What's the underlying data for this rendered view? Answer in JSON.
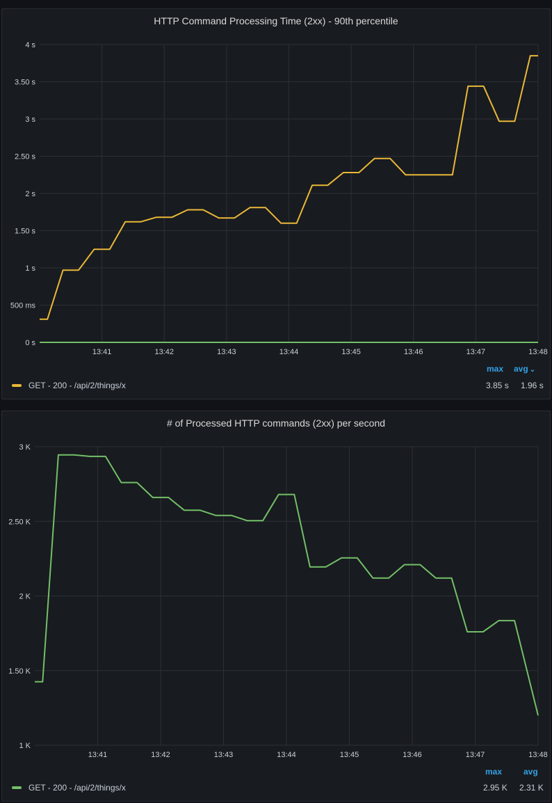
{
  "chart_data": [
    {
      "type": "line",
      "title": "HTTP Command Processing Time (2xx) - 90th percentile",
      "x_ticks": [
        "13:41",
        "13:42",
        "13:43",
        "13:44",
        "13:45",
        "13:46",
        "13:47",
        "13:48"
      ],
      "y_ticks": [
        "0 s",
        "500 ms",
        "1 s",
        "1.50 s",
        "2 s",
        "2.50 s",
        "3 s",
        "3.50 s",
        "4 s"
      ],
      "ylim": [
        0,
        4
      ],
      "xlim_minutes": [
        40.0,
        48.0
      ],
      "grid": true,
      "legend_placement": "bottom",
      "series": [
        {
          "name": "GET - 200 - /api/2/things/x",
          "color": "#eab839",
          "x_minutes": [
            40.0,
            40.125,
            40.375,
            40.625,
            40.875,
            41.125,
            41.375,
            41.625,
            41.875,
            42.125,
            42.375,
            42.625,
            42.875,
            43.125,
            43.375,
            43.625,
            43.875,
            44.125,
            44.375,
            44.625,
            44.875,
            45.125,
            45.375,
            45.625,
            45.875,
            46.125,
            46.375,
            46.625,
            46.875,
            47.125,
            47.375,
            47.625,
            47.875,
            48.0
          ],
          "values": [
            0.31,
            0.31,
            0.97,
            0.97,
            1.25,
            1.25,
            1.62,
            1.62,
            1.68,
            1.68,
            1.78,
            1.78,
            1.67,
            1.67,
            1.81,
            1.81,
            1.6,
            1.6,
            2.11,
            2.11,
            2.28,
            2.28,
            2.47,
            2.47,
            2.25,
            2.25,
            2.25,
            2.25,
            3.44,
            3.44,
            2.97,
            2.97,
            3.85,
            3.85
          ]
        },
        {
          "name": "",
          "color": "#73bf69",
          "x_minutes": [
            40.0,
            48.0
          ],
          "values": [
            0,
            0
          ]
        }
      ],
      "legend": {
        "series_label": "GET - 200 - /api/2/things/x",
        "max_header": "max",
        "avg_header": "avg",
        "avg_chevron": "⌄",
        "max_value": "3.85 s",
        "avg_value": "1.96 s"
      }
    },
    {
      "type": "line",
      "title": "# of Processed HTTP commands (2xx) per second",
      "x_ticks": [
        "13:41",
        "13:42",
        "13:43",
        "13:44",
        "13:45",
        "13:46",
        "13:47",
        "13:48"
      ],
      "y_ticks": [
        "1 K",
        "1.50 K",
        "2 K",
        "2.50 K",
        "3 K"
      ],
      "ylim": [
        1000,
        3000
      ],
      "xlim_minutes": [
        40.0,
        48.0
      ],
      "grid": true,
      "legend_placement": "bottom",
      "series": [
        {
          "name": "GET - 200 - /api/2/things/x",
          "color": "#73bf69",
          "x_minutes": [
            40.0,
            40.125,
            40.375,
            40.625,
            40.875,
            41.125,
            41.375,
            41.625,
            41.875,
            42.125,
            42.375,
            42.625,
            42.875,
            43.125,
            43.375,
            43.625,
            43.875,
            44.125,
            44.375,
            44.625,
            44.875,
            45.125,
            45.375,
            45.625,
            45.875,
            46.125,
            46.375,
            46.625,
            46.875,
            47.125,
            47.375,
            47.625,
            48.0
          ],
          "values": [
            1425,
            1425,
            2945,
            2945,
            2935,
            2935,
            2760,
            2760,
            2660,
            2660,
            2575,
            2575,
            2540,
            2540,
            2505,
            2505,
            2680,
            2680,
            2195,
            2195,
            2255,
            2255,
            2120,
            2120,
            2210,
            2210,
            2120,
            2120,
            1760,
            1760,
            1835,
            1835,
            1200
          ]
        }
      ],
      "legend": {
        "series_label": "GET - 200 - /api/2/things/x",
        "max_header": "max",
        "avg_header": "avg",
        "max_value": "2.95 K",
        "avg_value": "2.31 K"
      }
    }
  ]
}
